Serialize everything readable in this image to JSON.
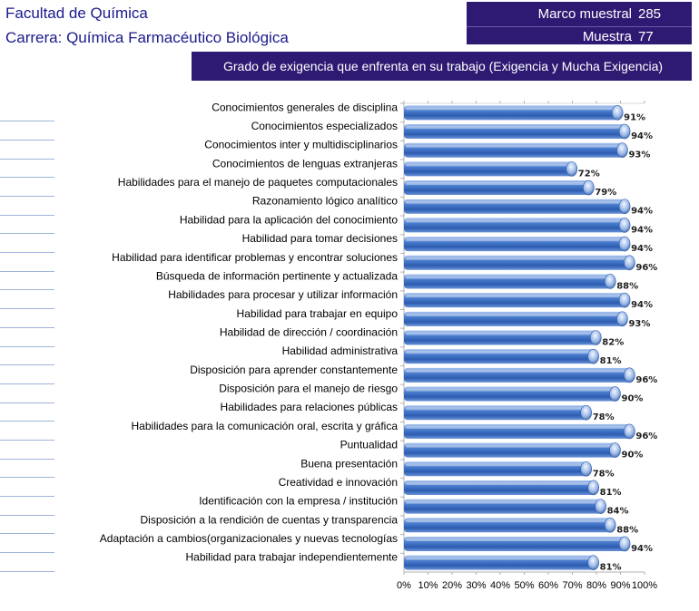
{
  "header": {
    "faculty": "Facultad de Química",
    "career": "Carrera: Química Farmacéutico Biológica"
  },
  "stats": {
    "marco_label": "Marco muestral",
    "marco_value": "285",
    "muestra_label": "Muestra",
    "muestra_value": "77"
  },
  "chart_data": {
    "type": "bar",
    "orientation": "horizontal",
    "title": "Grado de exigencia que enfrenta en su trabajo (Exigencia y Mucha Exigencia)",
    "categories": [
      "Conocimientos generales de disciplina",
      "Conocimientos especializados",
      "Conocimientos inter y multidisciplinarios",
      "Conocimientos de lenguas extranjeras",
      "Habilidades para el manejo de paquetes computacionales",
      "Razonamiento lógico analítico",
      "Habilidad para la aplicación del conocimiento",
      "Habilidad para tomar decisiones",
      "Habilidad para identificar problemas y encontrar soluciones",
      "Búsqueda de información pertinente y actualizada",
      "Habilidades para procesar y utilizar información",
      "Habilidad para trabajar en equipo",
      "Habilidad de dirección / coordinación",
      "Habilidad administrativa",
      "Disposición para aprender constantemente",
      "Disposición para el manejo de riesgo",
      "Habilidades para relaciones públicas",
      "Habilidades para la comunicación oral, escrita y gráfica",
      "Puntualidad",
      "Buena presentación",
      "Creatividad e innovación",
      "Identificación con la empresa / institución",
      "Disposición a la rendición de cuentas y transparencia",
      "Adaptación a cambios(organizacionales y nuevas tecnologías",
      "Habilidad para trabajar independientemente"
    ],
    "values": [
      91,
      94,
      93,
      72,
      79,
      94,
      94,
      94,
      96,
      88,
      94,
      93,
      82,
      81,
      96,
      90,
      78,
      96,
      90,
      78,
      81,
      84,
      88,
      94,
      81
    ],
    "value_labels": [
      "91%",
      "94%",
      "93%",
      "72%",
      "79%",
      "94%",
      "94%",
      "94%",
      "96%",
      "88%",
      "94%",
      "93%",
      "82%",
      "81%",
      "96%",
      "90%",
      "78%",
      "96%",
      "90%",
      "78%",
      "81%",
      "84%",
      "88%",
      "94%",
      "81%"
    ],
    "x_ticks": [
      "0%",
      "10%",
      "20%",
      "30%",
      "40%",
      "50%",
      "60%",
      "70%",
      "80%",
      "90%",
      "100%"
    ],
    "xlim": [
      0,
      100
    ],
    "bar_color": "#3a6fc4",
    "grid": false
  }
}
